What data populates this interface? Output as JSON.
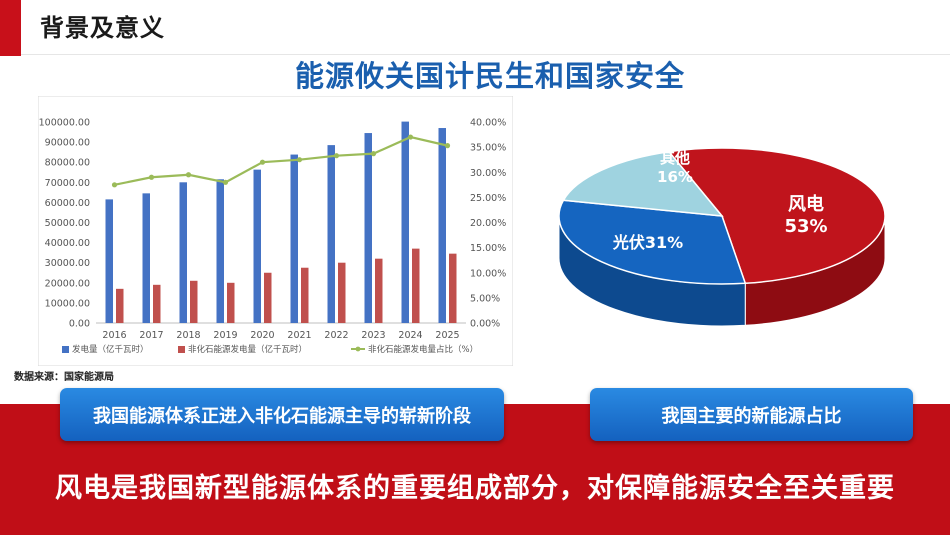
{
  "header": {
    "title": "背景及意义"
  },
  "main_title": "能源攸关国计民生和国家安全",
  "source_note": "数据来源：国家能源局",
  "left_pill": "我国能源体系正进入非化石能源主导的崭新阶段",
  "right_pill": "我国主要的新能源占比",
  "bottom_text": "风电是我国新型能源体系的重要组成部分，对保障能源安全至关重要",
  "colors": {
    "accent_red": "#c8101a",
    "title_blue": "#1a5fae",
    "bar_blue": "#4472c4",
    "bar_red": "#c0504d",
    "line_green": "#9bbb59",
    "pie_red": "#c0141c",
    "pie_blue": "#1565c0",
    "pie_lightblue": "#9fd3e0"
  },
  "chart_data": [
    {
      "type": "bar",
      "title": "",
      "categories": [
        "2016",
        "2017",
        "2018",
        "2019",
        "2020",
        "2021",
        "2022",
        "2023",
        "2024",
        "2025"
      ],
      "series": [
        {
          "name": "发电量（亿千瓦时）",
          "type": "bar",
          "axis": "left",
          "values": [
            61500,
            64500,
            70000,
            71500,
            76300,
            83800,
            88500,
            94500,
            100200,
            97000
          ]
        },
        {
          "name": "非化石能源发电量（亿千瓦时）",
          "type": "bar",
          "axis": "left",
          "values": [
            17000,
            19000,
            21000,
            20000,
            25000,
            27500,
            30000,
            32000,
            37000,
            34500
          ]
        },
        {
          "name": "非化石能源发电量占比（%）",
          "type": "line",
          "axis": "right",
          "values": [
            0.275,
            0.29,
            0.295,
            0.28,
            0.32,
            0.325,
            0.333,
            0.337,
            0.37,
            0.353
          ]
        }
      ],
      "y_left": {
        "min": 0,
        "max": 100000,
        "step": 10000,
        "ticks": [
          "0.00",
          "10000.00",
          "20000.00",
          "30000.00",
          "40000.00",
          "50000.00",
          "60000.00",
          "70000.00",
          "80000.00",
          "90000.00",
          "100000.00"
        ]
      },
      "y_right": {
        "min": 0,
        "max": 0.4,
        "step": 0.05,
        "ticks": [
          "0.00%",
          "5.00%",
          "10.00%",
          "15.00%",
          "20.00%",
          "25.00%",
          "30.00%",
          "35.00%",
          "40.00%"
        ]
      },
      "legend_position": "bottom",
      "grid": false
    },
    {
      "type": "pie",
      "title": "",
      "slices": [
        {
          "name": "风电",
          "label": "53%",
          "value": 53
        },
        {
          "name": "光伏",
          "label": "31%",
          "value": 31
        },
        {
          "name": "其他",
          "label": "16%",
          "value": 16
        }
      ],
      "style": "3d"
    }
  ]
}
